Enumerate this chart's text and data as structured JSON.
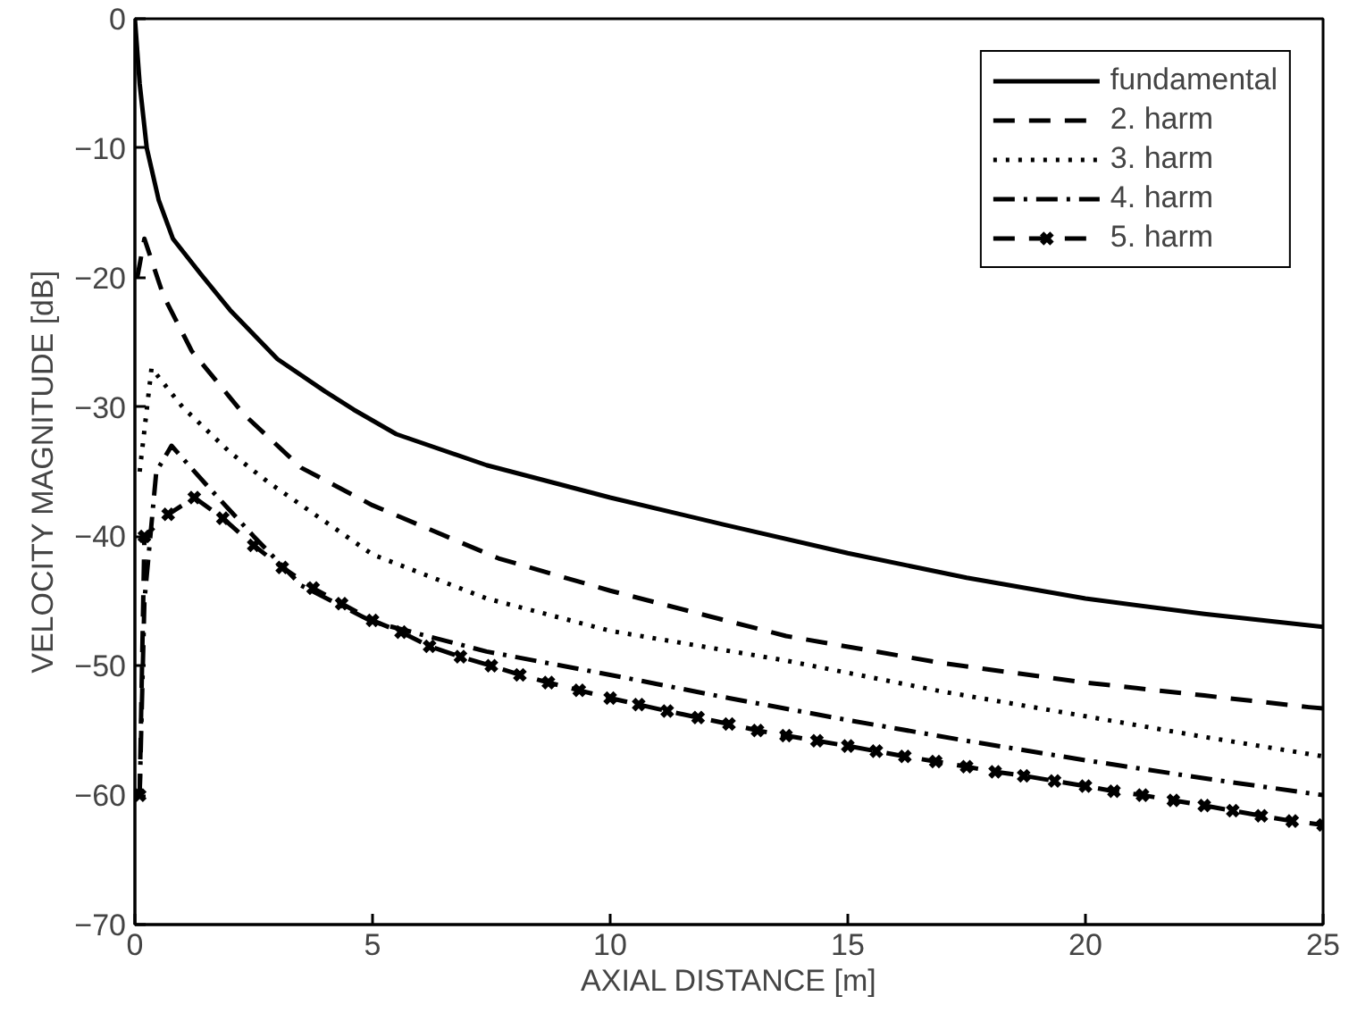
{
  "chart_data": {
    "type": "line",
    "xlabel": "AXIAL DISTANCE [m]",
    "ylabel": "VELOCITY MAGNITUDE [dB]",
    "xlim": [
      0,
      25
    ],
    "ylim": [
      -70,
      0
    ],
    "xticks": [
      0,
      5,
      10,
      15,
      20,
      25
    ],
    "yticks": [
      {
        "value": -70,
        "label": "−70"
      },
      {
        "value": -60,
        "label": "−60"
      },
      {
        "value": -50,
        "label": "−50"
      },
      {
        "value": -40,
        "label": "−40"
      },
      {
        "value": -30,
        "label": "−30"
      },
      {
        "value": -20,
        "label": "−20"
      },
      {
        "value": -10,
        "label": "−10"
      },
      0
    ],
    "grid": false,
    "legend": "top right",
    "series": [
      {
        "name": "fundamental",
        "color": "#000000",
        "line_style": "solid",
        "marker": "none",
        "x": [
          0,
          0.1,
          0.25,
          0.5,
          0.8,
          1.4,
          2,
          3,
          4,
          4.6,
          5.5,
          7.4,
          10,
          12.4,
          15,
          17.5,
          20,
          22.5,
          25
        ],
        "values": [
          0,
          -5,
          -10,
          -14,
          -17,
          -19.8,
          -22.5,
          -26.3,
          -28.8,
          -30.2,
          -32.1,
          -34.5,
          -37,
          -39.1,
          -41.3,
          -43.2,
          -44.8,
          -46,
          -47
        ]
      },
      {
        "name": "2. harm",
        "color": "#000000",
        "line_style": "dashed",
        "marker": "none",
        "x": [
          0.05,
          0.2,
          0.6,
          1.2,
          2.3,
          3.5,
          5,
          7.65,
          10,
          13.7,
          17,
          20,
          22.5,
          24.7,
          25
        ],
        "values": [
          -20,
          -17,
          -21.4,
          -25.7,
          -30.6,
          -34.7,
          -37.6,
          -41.7,
          -44.2,
          -47.7,
          -49.8,
          -51.3,
          -52.3,
          -53.2,
          -53.3
        ]
      },
      {
        "name": "3. harm",
        "color": "#000000",
        "line_style": "dotted",
        "marker": "none",
        "x": [
          0.1,
          0.35,
          1,
          2,
          2.8,
          5,
          7.4,
          10,
          13.7,
          17,
          20,
          22.5,
          25
        ],
        "values": [
          -35,
          -27,
          -30,
          -33.5,
          -35.8,
          -41.4,
          -44.8,
          -47.3,
          -49.6,
          -52,
          -53.9,
          -55.5,
          -57
        ]
      },
      {
        "name": "4. harm",
        "color": "#000000",
        "line_style": "dashdot",
        "marker": "none",
        "x": [
          0.1,
          0.2,
          0.45,
          0.77,
          1.5,
          2.5,
          3.5,
          5,
          7.4,
          10,
          12.5,
          15,
          17.5,
          20,
          22.5,
          25
        ],
        "values": [
          -60,
          -45,
          -35,
          -33,
          -36,
          -40,
          -43.8,
          -46.6,
          -48.9,
          -50.7,
          -52.5,
          -54.2,
          -55.8,
          -57.3,
          -58.7,
          -60
        ]
      },
      {
        "name": "5. harm",
        "color": "#000000",
        "line_style": "dashed",
        "marker": "cross",
        "x": [
          0.1,
          0.2,
          0.7,
          1.25,
          1.85,
          2.5,
          3.1,
          3.75,
          4.35,
          5.0,
          5.6,
          6.2,
          6.85,
          7.5,
          8.1,
          8.7,
          9.35,
          10.0,
          10.6,
          11.2,
          11.85,
          12.5,
          13.1,
          13.7,
          14.35,
          15.0,
          15.6,
          16.2,
          16.85,
          17.5,
          18.1,
          18.7,
          19.35,
          20.0,
          20.6,
          21.2,
          21.85,
          22.5,
          23.1,
          23.7,
          24.35,
          25.0
        ],
        "values": [
          -60,
          -40,
          -38.3,
          -37.0,
          -38.6,
          -40.7,
          -42.4,
          -44.0,
          -45.2,
          -46.5,
          -47.4,
          -48.5,
          -49.3,
          -50.0,
          -50.7,
          -51.3,
          -51.9,
          -52.5,
          -53.0,
          -53.5,
          -54.0,
          -54.5,
          -55.0,
          -55.4,
          -55.8,
          -56.2,
          -56.6,
          -57.0,
          -57.4,
          -57.8,
          -58.2,
          -58.5,
          -58.9,
          -59.3,
          -59.7,
          -60.0,
          -60.4,
          -60.8,
          -61.2,
          -61.6,
          -62.0,
          -62.3
        ]
      }
    ]
  }
}
